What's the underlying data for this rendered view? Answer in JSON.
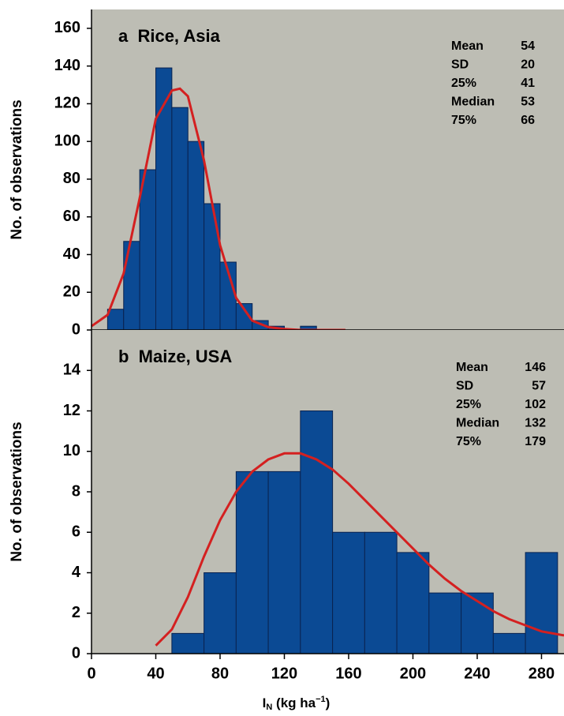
{
  "chart_data": [
    {
      "type": "histogram",
      "title": "a  Rice, Asia",
      "ylabel": "No. of observations",
      "bins": [
        10,
        20,
        30,
        40,
        50,
        60,
        70,
        80,
        90,
        100,
        110,
        120,
        130,
        140
      ],
      "values": [
        11,
        47,
        85,
        139,
        118,
        100,
        67,
        36,
        14,
        5,
        2,
        0,
        2
      ],
      "color": "#0b4a94",
      "background": "#bdbdb4",
      "fit": {
        "color": "#d42020",
        "x": [
          0,
          10,
          20,
          30,
          40,
          50,
          55,
          60,
          70,
          80,
          90,
          100,
          110,
          120,
          130,
          140,
          150,
          158
        ],
        "values": [
          2,
          8,
          30,
          70,
          112,
          127,
          128,
          124,
          90,
          45,
          17,
          5,
          1.5,
          0.5,
          0,
          0,
          0,
          0
        ]
      },
      "stats": [
        [
          "Mean",
          "54"
        ],
        [
          "SD",
          "20"
        ],
        [
          "25%",
          "41"
        ],
        [
          "Median",
          "53"
        ],
        [
          "75%",
          "66"
        ]
      ],
      "xlim": [
        0,
        294
      ],
      "ylim": [
        0,
        170
      ],
      "yticks": [
        0,
        20,
        40,
        60,
        80,
        100,
        120,
        140,
        160
      ]
    },
    {
      "type": "histogram",
      "title": "b  Maize, USA",
      "ylabel": "No. of observations",
      "xlabel": [
        "I",
        "N",
        " (kg ha",
        "−1",
        ")"
      ],
      "bins": [
        50,
        70,
        90,
        110,
        130,
        150,
        170,
        190,
        210,
        230,
        250,
        270,
        290
      ],
      "values": [
        1,
        4,
        9,
        9,
        12,
        6,
        6,
        5,
        3,
        3,
        1,
        5
      ],
      "color": "#0b4a94",
      "background": "#bdbdb4",
      "fit": {
        "color": "#d42020",
        "x": [
          40,
          50,
          60,
          70,
          80,
          90,
          100,
          110,
          120,
          130,
          140,
          150,
          160,
          170,
          180,
          190,
          200,
          210,
          220,
          230,
          240,
          250,
          260,
          270,
          280,
          294
        ],
        "values": [
          0.4,
          1.2,
          2.8,
          4.8,
          6.6,
          8.0,
          9.0,
          9.6,
          9.9,
          9.9,
          9.6,
          9.1,
          8.4,
          7.6,
          6.8,
          6.0,
          5.2,
          4.4,
          3.7,
          3.1,
          2.6,
          2.1,
          1.7,
          1.4,
          1.1,
          0.9
        ]
      },
      "stats": [
        [
          "Mean",
          "146"
        ],
        [
          "SD",
          "57"
        ],
        [
          "25%",
          "102"
        ],
        [
          "Median",
          "132"
        ],
        [
          "75%",
          "179"
        ]
      ],
      "xlim": [
        0,
        294
      ],
      "ylim": [
        0,
        16
      ],
      "yticks": [
        0,
        2,
        4,
        6,
        8,
        10,
        12,
        14
      ],
      "xticks": [
        0,
        40,
        80,
        120,
        160,
        200,
        240,
        280
      ]
    }
  ]
}
